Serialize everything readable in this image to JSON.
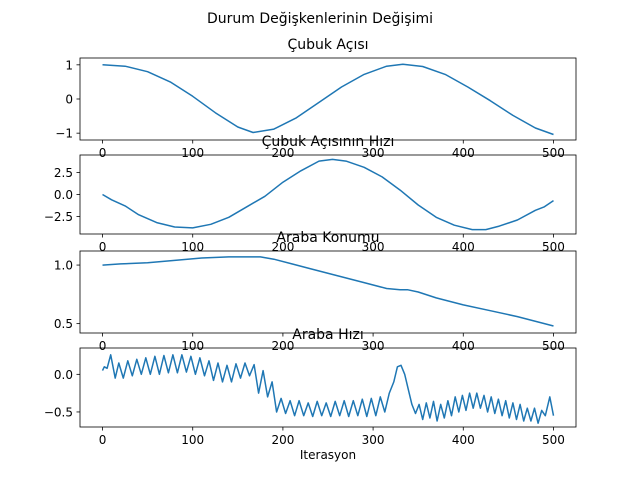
{
  "figure": {
    "suptitle": "Durum Değişkenlerinin Değişimi"
  },
  "chart_data": [
    {
      "type": "line",
      "title": "Çubuk Açısı",
      "xlabel": "",
      "ylabel": "",
      "xlim": [
        -25,
        525
      ],
      "ylim": [
        -1.2,
        1.2
      ],
      "xticks": [
        0,
        100,
        200,
        300,
        400,
        500
      ],
      "yticks": [
        1,
        0,
        -1
      ],
      "ytick_labels": [
        "1",
        "0",
        "−1"
      ],
      "series": [
        {
          "color": "#1f77b4",
          "x": [
            0,
            25,
            50,
            75,
            100,
            125,
            150,
            167,
            190,
            215,
            240,
            265,
            290,
            315,
            333,
            355,
            380,
            405,
            430,
            455,
            480,
            500
          ],
          "y": [
            1.0,
            0.96,
            0.8,
            0.5,
            0.08,
            -0.4,
            -0.82,
            -0.98,
            -0.88,
            -0.55,
            -0.1,
            0.35,
            0.72,
            0.96,
            1.02,
            0.95,
            0.72,
            0.35,
            -0.05,
            -0.48,
            -0.85,
            -1.04
          ]
        }
      ]
    },
    {
      "type": "line",
      "title": "Çubuk Açısının Hızı",
      "xlabel": "",
      "ylabel": "",
      "xlim": [
        -25,
        525
      ],
      "ylim": [
        -4.5,
        4.5
      ],
      "xticks": [
        0,
        100,
        200,
        300,
        400,
        500
      ],
      "yticks": [
        2.5,
        0.0,
        -2.5
      ],
      "ytick_labels": [
        "2.5",
        "0.0",
        "−2.5"
      ],
      "series": [
        {
          "color": "#1f77b4",
          "x": [
            0,
            10,
            25,
            40,
            60,
            80,
            100,
            120,
            140,
            160,
            180,
            200,
            220,
            240,
            255,
            270,
            290,
            310,
            330,
            350,
            370,
            390,
            410,
            425,
            440,
            460,
            480,
            490,
            500
          ],
          "y": [
            0.0,
            -0.6,
            -1.3,
            -2.3,
            -3.2,
            -3.7,
            -3.8,
            -3.4,
            -2.6,
            -1.4,
            -0.2,
            1.4,
            2.7,
            3.8,
            4.0,
            3.8,
            3.1,
            2.0,
            0.5,
            -1.2,
            -2.6,
            -3.5,
            -4.0,
            -4.0,
            -3.6,
            -2.9,
            -1.8,
            -1.4,
            -0.7
          ]
        }
      ]
    },
    {
      "type": "line",
      "title": "Araba Konumu",
      "xlabel": "",
      "ylabel": "",
      "xlim": [
        -25,
        525
      ],
      "ylim": [
        0.42,
        1.12
      ],
      "xticks": [
        0,
        100,
        200,
        300,
        400,
        500
      ],
      "yticks": [
        1.0,
        0.5
      ],
      "ytick_labels": [
        "1.0",
        "0.5"
      ],
      "series": [
        {
          "color": "#1f77b4",
          "x": [
            0,
            20,
            50,
            80,
            110,
            140,
            160,
            175,
            190,
            210,
            230,
            260,
            290,
            315,
            330,
            338,
            350,
            370,
            400,
            430,
            460,
            490,
            500
          ],
          "y": [
            1.0,
            1.01,
            1.02,
            1.04,
            1.06,
            1.07,
            1.07,
            1.07,
            1.05,
            1.01,
            0.97,
            0.91,
            0.85,
            0.8,
            0.79,
            0.79,
            0.77,
            0.72,
            0.66,
            0.61,
            0.56,
            0.5,
            0.48
          ]
        }
      ]
    },
    {
      "type": "line",
      "title": "Araba Hızı",
      "xlabel": "Iterasyon",
      "ylabel": "",
      "xlim": [
        -25,
        525
      ],
      "ylim": [
        -0.7,
        0.35
      ],
      "xticks": [
        0,
        100,
        200,
        300,
        400,
        500
      ],
      "yticks": [
        0.0,
        -0.5
      ],
      "ytick_labels": [
        "0.0",
        "−0.5"
      ],
      "series": [
        {
          "color": "#1f77b4",
          "x": [
            0,
            2,
            5,
            9,
            14,
            18,
            23,
            28,
            33,
            38,
            43,
            48,
            53,
            58,
            63,
            68,
            73,
            78,
            83,
            88,
            93,
            98,
            103,
            108,
            113,
            118,
            123,
            128,
            133,
            138,
            143,
            148,
            153,
            158,
            163,
            168,
            173,
            178,
            183,
            188,
            193,
            198,
            203,
            208,
            213,
            218,
            223,
            228,
            233,
            238,
            243,
            248,
            253,
            258,
            263,
            268,
            273,
            278,
            283,
            288,
            293,
            298,
            303,
            308,
            313,
            318,
            323,
            327,
            331,
            335,
            339,
            343,
            347,
            351,
            355,
            359,
            363,
            367,
            371,
            375,
            379,
            383,
            387,
            391,
            395,
            399,
            403,
            407,
            411,
            415,
            419,
            423,
            427,
            431,
            435,
            439,
            443,
            447,
            451,
            455,
            459,
            463,
            467,
            471,
            475,
            479,
            483,
            487,
            491,
            496,
            500
          ],
          "y": [
            0.05,
            0.1,
            0.08,
            0.26,
            -0.05,
            0.15,
            -0.05,
            0.18,
            -0.02,
            0.2,
            0.0,
            0.22,
            0.0,
            0.24,
            0.0,
            0.25,
            0.02,
            0.26,
            0.02,
            0.26,
            0.03,
            0.24,
            0.0,
            0.22,
            -0.02,
            0.18,
            -0.08,
            0.15,
            -0.1,
            0.12,
            -0.1,
            0.14,
            -0.05,
            0.15,
            -0.02,
            0.13,
            -0.25,
            0.05,
            -0.3,
            -0.1,
            -0.5,
            -0.32,
            -0.52,
            -0.35,
            -0.55,
            -0.35,
            -0.55,
            -0.38,
            -0.56,
            -0.36,
            -0.55,
            -0.38,
            -0.56,
            -0.36,
            -0.55,
            -0.35,
            -0.56,
            -0.35,
            -0.55,
            -0.33,
            -0.56,
            -0.32,
            -0.55,
            -0.3,
            -0.5,
            -0.25,
            -0.1,
            0.1,
            0.12,
            0.0,
            -0.2,
            -0.4,
            -0.52,
            -0.4,
            -0.6,
            -0.38,
            -0.58,
            -0.36,
            -0.62,
            -0.4,
            -0.58,
            -0.35,
            -0.55,
            -0.3,
            -0.5,
            -0.28,
            -0.48,
            -0.25,
            -0.45,
            -0.25,
            -0.45,
            -0.28,
            -0.5,
            -0.3,
            -0.52,
            -0.33,
            -0.55,
            -0.35,
            -0.58,
            -0.38,
            -0.6,
            -0.4,
            -0.62,
            -0.45,
            -0.62,
            -0.45,
            -0.65,
            -0.48,
            -0.55,
            -0.3,
            -0.55
          ]
        }
      ]
    }
  ]
}
